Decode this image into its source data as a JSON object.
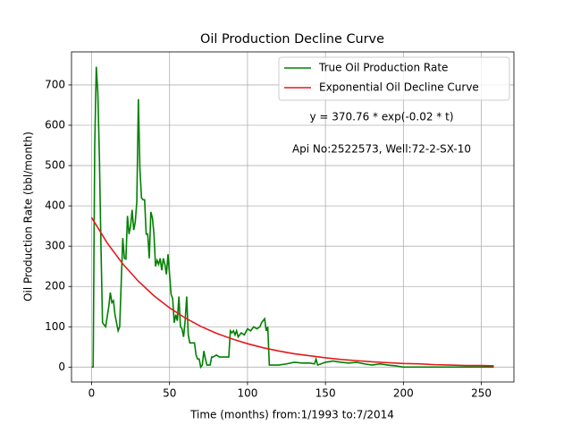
{
  "chart_data": {
    "type": "line",
    "title": "Oil Production Decline Curve",
    "xlabel": "Time (months) from:1/1993 to:7/2014",
    "ylabel": "Oil Production Rate (bbl/month)",
    "annotations": [
      "y = 370.76 * exp(-0.02 * t)",
      "Api No:2522573, Well:72-2-SX-10"
    ],
    "xlim": [
      -12.9,
      270.9
    ],
    "ylim": [
      -37,
      782
    ],
    "xticks": [
      0,
      50,
      100,
      150,
      200,
      250
    ],
    "yticks": [
      0,
      100,
      200,
      300,
      400,
      500,
      600,
      700
    ],
    "grid": true,
    "legend": "upper right",
    "series": [
      {
        "name": "True Oil Production Rate",
        "color": "#008000",
        "x": [
          0,
          1,
          2,
          3,
          4,
          5,
          6,
          7,
          9,
          11,
          12,
          13,
          14,
          15,
          17,
          18,
          20,
          21,
          22,
          23,
          24,
          25,
          26,
          27,
          28,
          29,
          30,
          31,
          32,
          33,
          34,
          35,
          36,
          37,
          38,
          39,
          40,
          41,
          42,
          43,
          44,
          45,
          46,
          47,
          48,
          49,
          50,
          51,
          52,
          53,
          54,
          55,
          56,
          57,
          58,
          59,
          60,
          61,
          62,
          63,
          64,
          65,
          66,
          67,
          68,
          69,
          70,
          71,
          72,
          73,
          74,
          75,
          76,
          77,
          78,
          80,
          82,
          84,
          86,
          88,
          89,
          90,
          91,
          92,
          93,
          94,
          96,
          98,
          100,
          102,
          104,
          106,
          108,
          109,
          110,
          111,
          112,
          113,
          114,
          115,
          120,
          125,
          130,
          135,
          140,
          143,
          144,
          145,
          150,
          155,
          160,
          165,
          170,
          175,
          180,
          185,
          190,
          195,
          200,
          258
        ],
        "values": [
          0,
          0,
          550,
          745,
          680,
          520,
          300,
          110,
          100,
          150,
          185,
          160,
          165,
          130,
          90,
          100,
          320,
          270,
          268,
          375,
          330,
          350,
          390,
          340,
          360,
          410,
          665,
          490,
          420,
          415,
          415,
          330,
          330,
          270,
          385,
          370,
          330,
          250,
          265,
          255,
          270,
          240,
          270,
          255,
          230,
          280,
          230,
          180,
          170,
          110,
          130,
          115,
          175,
          100,
          95,
          75,
          115,
          175,
          80,
          60,
          60,
          60,
          60,
          30,
          20,
          20,
          0,
          5,
          40,
          20,
          5,
          5,
          5,
          25,
          25,
          30,
          25,
          25,
          25,
          25,
          90,
          85,
          90,
          80,
          90,
          75,
          85,
          80,
          95,
          90,
          100,
          95,
          100,
          110,
          115,
          120,
          90,
          100,
          5,
          5,
          5,
          8,
          12,
          10,
          10,
          8,
          20,
          5,
          12,
          15,
          12,
          10,
          12,
          8,
          5,
          8,
          5,
          3,
          0,
          0
        ]
      },
      {
        "name": "Exponential Oil Decline Curve",
        "color": "#e41a1c",
        "x": [
          0,
          10,
          20,
          30,
          40,
          50,
          60,
          70,
          80,
          90,
          100,
          110,
          120,
          130,
          140,
          150,
          160,
          170,
          180,
          190,
          200,
          210,
          220,
          230,
          240,
          250,
          258
        ],
        "values": [
          371,
          308,
          256,
          213,
          177,
          147,
          122,
          101,
          84,
          70,
          58,
          48,
          40,
          33,
          28,
          23,
          19,
          16,
          13,
          11,
          9,
          8,
          6,
          5,
          4,
          4,
          3
        ]
      }
    ]
  }
}
